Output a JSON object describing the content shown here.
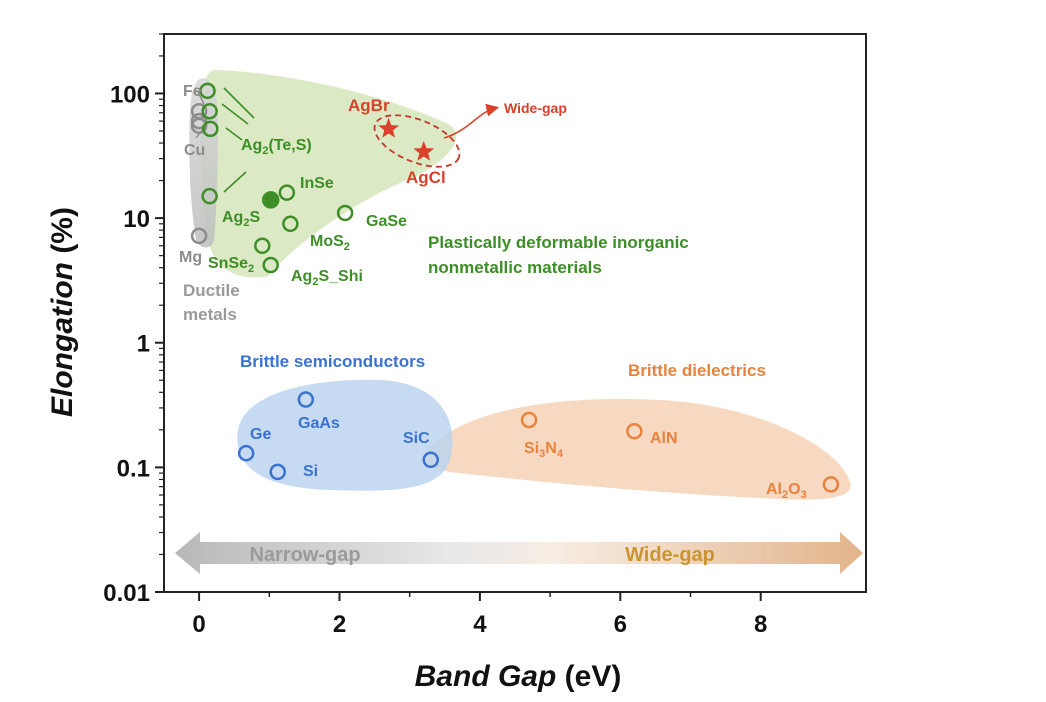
{
  "chart_data": {
    "type": "scatter",
    "xlabel": "Band Gap",
    "xlabel_unit": " (eV)",
    "ylabel": "Elongation",
    "ylabel_unit": " (%)",
    "yscale": "log",
    "xlim": [
      -0.5,
      9.5
    ],
    "ylim": [
      0.01,
      300
    ],
    "xticks": [
      0,
      2,
      4,
      6,
      8
    ],
    "xtick_labels": [
      "0",
      "2",
      "4",
      "6",
      "8"
    ],
    "yticks": [
      0.01,
      0.1,
      1,
      10,
      100
    ],
    "ytick_labels": [
      "0.01",
      "0.1",
      "1",
      "10",
      "100"
    ],
    "series": [
      {
        "name": "Ductile metals",
        "color": "#8c8c8c",
        "points": [
          {
            "label": "Fe",
            "x": 0.0,
            "y": 72
          },
          {
            "label": "",
            "x": 0.0,
            "y": 55
          },
          {
            "label": "Cu",
            "x": 0.0,
            "y": 60
          },
          {
            "label": "Mg",
            "x": 0.0,
            "y": 7.2
          }
        ]
      },
      {
        "name": "Plastically deformable inorganic nonmetallic materials",
        "color": "#3e8e27",
        "points": [
          {
            "label": "Ag2(Te,S)",
            "x": 0.12,
            "y": 105
          },
          {
            "label": "",
            "x": 0.15,
            "y": 72
          },
          {
            "label": "",
            "x": 0.16,
            "y": 52
          },
          {
            "label": "Ag2S",
            "x": 0.15,
            "y": 15
          },
          {
            "label": "",
            "x": 1.02,
            "y": 14,
            "filled": true
          },
          {
            "label": "InSe",
            "x": 1.25,
            "y": 16
          },
          {
            "label": "GaSe",
            "x": 2.08,
            "y": 11
          },
          {
            "label": "MoS2",
            "x": 1.3,
            "y": 9
          },
          {
            "label": "SnSe2",
            "x": 0.9,
            "y": 6
          },
          {
            "label": "Ag2S_Shi",
            "x": 1.02,
            "y": 4.2
          }
        ]
      },
      {
        "name": "Wide-gap",
        "color": "#d9412b",
        "marker": "star",
        "points": [
          {
            "label": "AgBr",
            "x": 2.7,
            "y": 52
          },
          {
            "label": "AgCl",
            "x": 3.2,
            "y": 34
          }
        ]
      },
      {
        "name": "Brittle semiconductors",
        "color": "#3a73cf",
        "points": [
          {
            "label": "Ge",
            "x": 0.67,
            "y": 0.13
          },
          {
            "label": "GaAs",
            "x": 1.52,
            "y": 0.35
          },
          {
            "label": "Si",
            "x": 1.12,
            "y": 0.092
          },
          {
            "label": "SiC",
            "x": 3.3,
            "y": 0.115
          }
        ]
      },
      {
        "name": "Brittle dielectrics",
        "color": "#e8823c",
        "points": [
          {
            "label": "Si3N4",
            "x": 4.7,
            "y": 0.24
          },
          {
            "label": "AlN",
            "x": 6.2,
            "y": 0.195
          },
          {
            "label": "Al2O3",
            "x": 9.0,
            "y": 0.073
          }
        ]
      }
    ],
    "annotations": {
      "wide_gap_callout": "Wide-gap",
      "green_region": [
        "Plastically deformable inorganic",
        "nonmetallic materials"
      ],
      "gray_region": [
        "Ductile",
        "metals"
      ],
      "blue_region": "Brittle semiconductors",
      "orange_region": "Brittle dielectrics",
      "arrow_left": "Narrow-gap",
      "arrow_right": "Wide-gap"
    }
  }
}
